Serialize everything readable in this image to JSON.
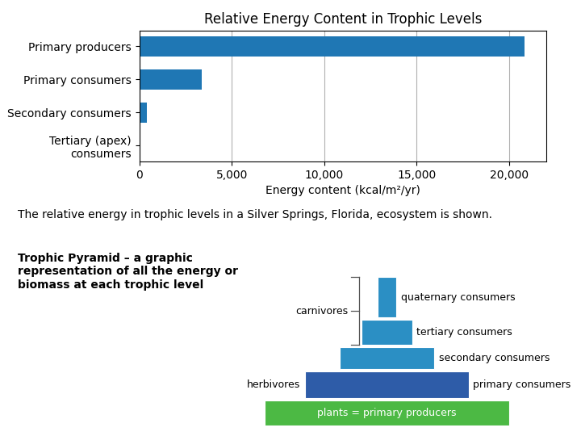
{
  "chart_data": [
    {
      "type": "bar",
      "orientation": "horizontal",
      "title": "Relative Energy Content in Trophic Levels",
      "categories": [
        "Tertiary (apex)\nconsumers",
        "Secondary consumers",
        "Primary consumers",
        "Primary producers"
      ],
      "values": [
        21,
        383,
        3368,
        20810
      ],
      "xlim": [
        0,
        22000
      ],
      "xticks": [
        0,
        {
          "value": 5000,
          "label": "5,000"
        },
        {
          "value": 10000,
          "label": "10,000"
        },
        {
          "value": 15000,
          "label": "15,000"
        },
        {
          "value": 20000,
          "label": "20,000"
        }
      ],
      "xlabel": "Energy content (kcal/m²/yr)",
      "grid": true,
      "annotations": [
        "The relative energy in trophic levels in a Silver Springs, Florida, ecosystem is shown."
      ]
    },
    {
      "type": "pyramid",
      "title": "Trophic Pyramid – a graphic\nrepresentation of all the energy or\nbiomass at each trophic level",
      "categories": [
        "plants = primary producers",
        "primary consumers",
        "secondary consumers",
        "tertiary consumers",
        "quaternary consumers"
      ],
      "colors": [
        "#4CB944",
        "#2E5CA8",
        "#2B8FC4",
        "#2B8FC4",
        "#2B8FC4"
      ],
      "annotations": [
        {
          "text": "herbivores",
          "categories": [
            "primary consumers"
          ]
        },
        {
          "text": "carnivores",
          "categories": [
            "tertiary consumers",
            "quaternary consumers"
          ]
        }
      ]
    }
  ]
}
